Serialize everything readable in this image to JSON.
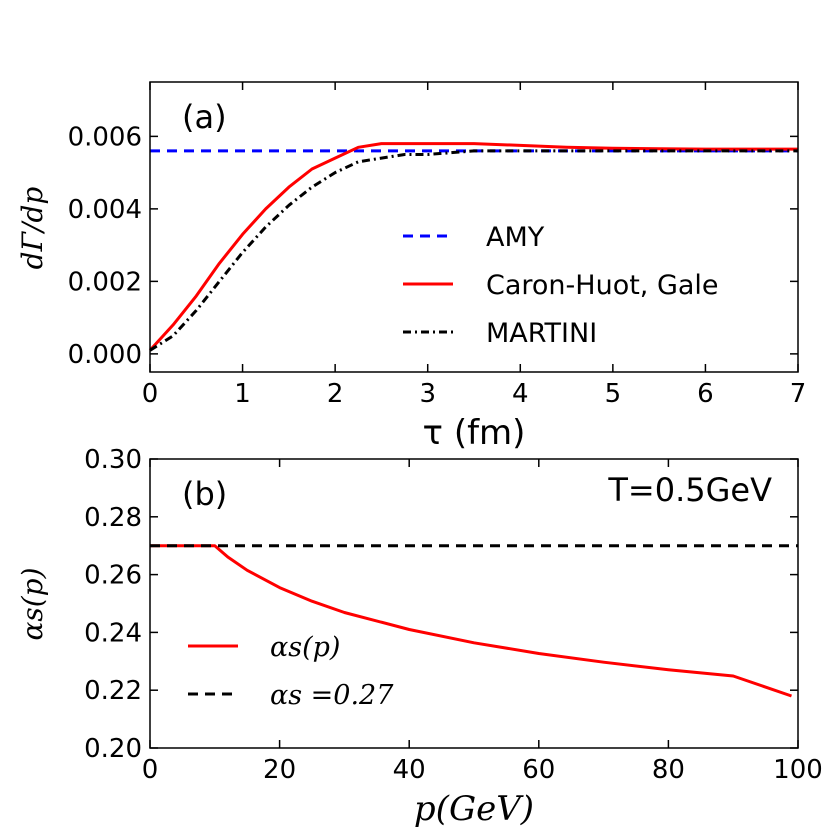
{
  "chart_data": [
    {
      "panel": "(a)",
      "type": "line",
      "xlabel": "τ (fm)",
      "ylabel": "dΓ/dp",
      "xlim": [
        0,
        7
      ],
      "ylim": [
        -0.0005,
        0.0075
      ],
      "xticks": [
        "0",
        "1",
        "2",
        "3",
        "4",
        "5",
        "6",
        "7"
      ],
      "yticks": [
        "0.000",
        "0.002",
        "0.004",
        "0.006"
      ],
      "grid": false,
      "legend_position": "center-right",
      "series": [
        {
          "name": "AMY",
          "color": "#0000ff",
          "style": "dashed",
          "x": [
            0,
            7
          ],
          "y": [
            0.0056,
            0.0056
          ]
        },
        {
          "name": "Caron-Huot, Gale",
          "color": "#ff0000",
          "style": "solid",
          "x": [
            0,
            0.25,
            0.5,
            0.75,
            1.0,
            1.25,
            1.5,
            1.75,
            2.0,
            2.25,
            2.5,
            2.75,
            3.0,
            3.25,
            3.5,
            4.0,
            4.5,
            5.0,
            5.5,
            6.0,
            6.5,
            7.0
          ],
          "y": [
            0.0001,
            0.0008,
            0.0016,
            0.0025,
            0.0033,
            0.004,
            0.0046,
            0.0051,
            0.0054,
            0.0057,
            0.0058,
            0.0058,
            0.0058,
            0.0058,
            0.0058,
            0.00575,
            0.0057,
            0.00567,
            0.00566,
            0.00565,
            0.00565,
            0.00565
          ]
        },
        {
          "name": "MARTINI",
          "color": "#000000",
          "style": "dash-dot",
          "x": [
            0,
            0.25,
            0.5,
            0.75,
            1.0,
            1.25,
            1.5,
            1.75,
            2.0,
            2.25,
            2.5,
            2.75,
            3.0,
            3.5,
            4.0,
            4.5,
            5.0,
            5.5,
            6.0,
            6.5,
            7.0
          ],
          "y": [
            0.0001,
            0.0005,
            0.0012,
            0.002,
            0.0028,
            0.0035,
            0.0041,
            0.0046,
            0.005,
            0.0053,
            0.0054,
            0.0055,
            0.0055,
            0.0056,
            0.0056,
            0.0056,
            0.0056,
            0.0056,
            0.0056,
            0.0056,
            0.0056
          ]
        }
      ]
    },
    {
      "panel": "(b)",
      "annotation": "T=0.5GeV",
      "type": "line",
      "xlabel": "p(GeV)",
      "ylabel": "αs(p)",
      "xlim": [
        0,
        100
      ],
      "ylim": [
        0.2,
        0.3
      ],
      "xticks": [
        "0",
        "20",
        "40",
        "60",
        "80",
        "100"
      ],
      "yticks": [
        "0.20",
        "0.22",
        "0.24",
        "0.26",
        "0.28",
        "0.30"
      ],
      "grid": false,
      "legend_position": "lower-left",
      "series": [
        {
          "name": "αs(p)",
          "color": "#ff0000",
          "style": "solid",
          "x": [
            0,
            5,
            10,
            12,
            15,
            20,
            25,
            30,
            40,
            50,
            60,
            70,
            80,
            90,
            99
          ],
          "y": [
            0.27,
            0.27,
            0.27,
            0.2661,
            0.2615,
            0.2555,
            0.2508,
            0.2469,
            0.241,
            0.2364,
            0.2327,
            0.2297,
            0.2271,
            0.2249,
            0.218
          ]
        },
        {
          "name": "αs =0.27",
          "color": "#000000",
          "style": "dashed",
          "x": [
            0,
            100
          ],
          "y": [
            0.27,
            0.27
          ]
        }
      ]
    }
  ]
}
